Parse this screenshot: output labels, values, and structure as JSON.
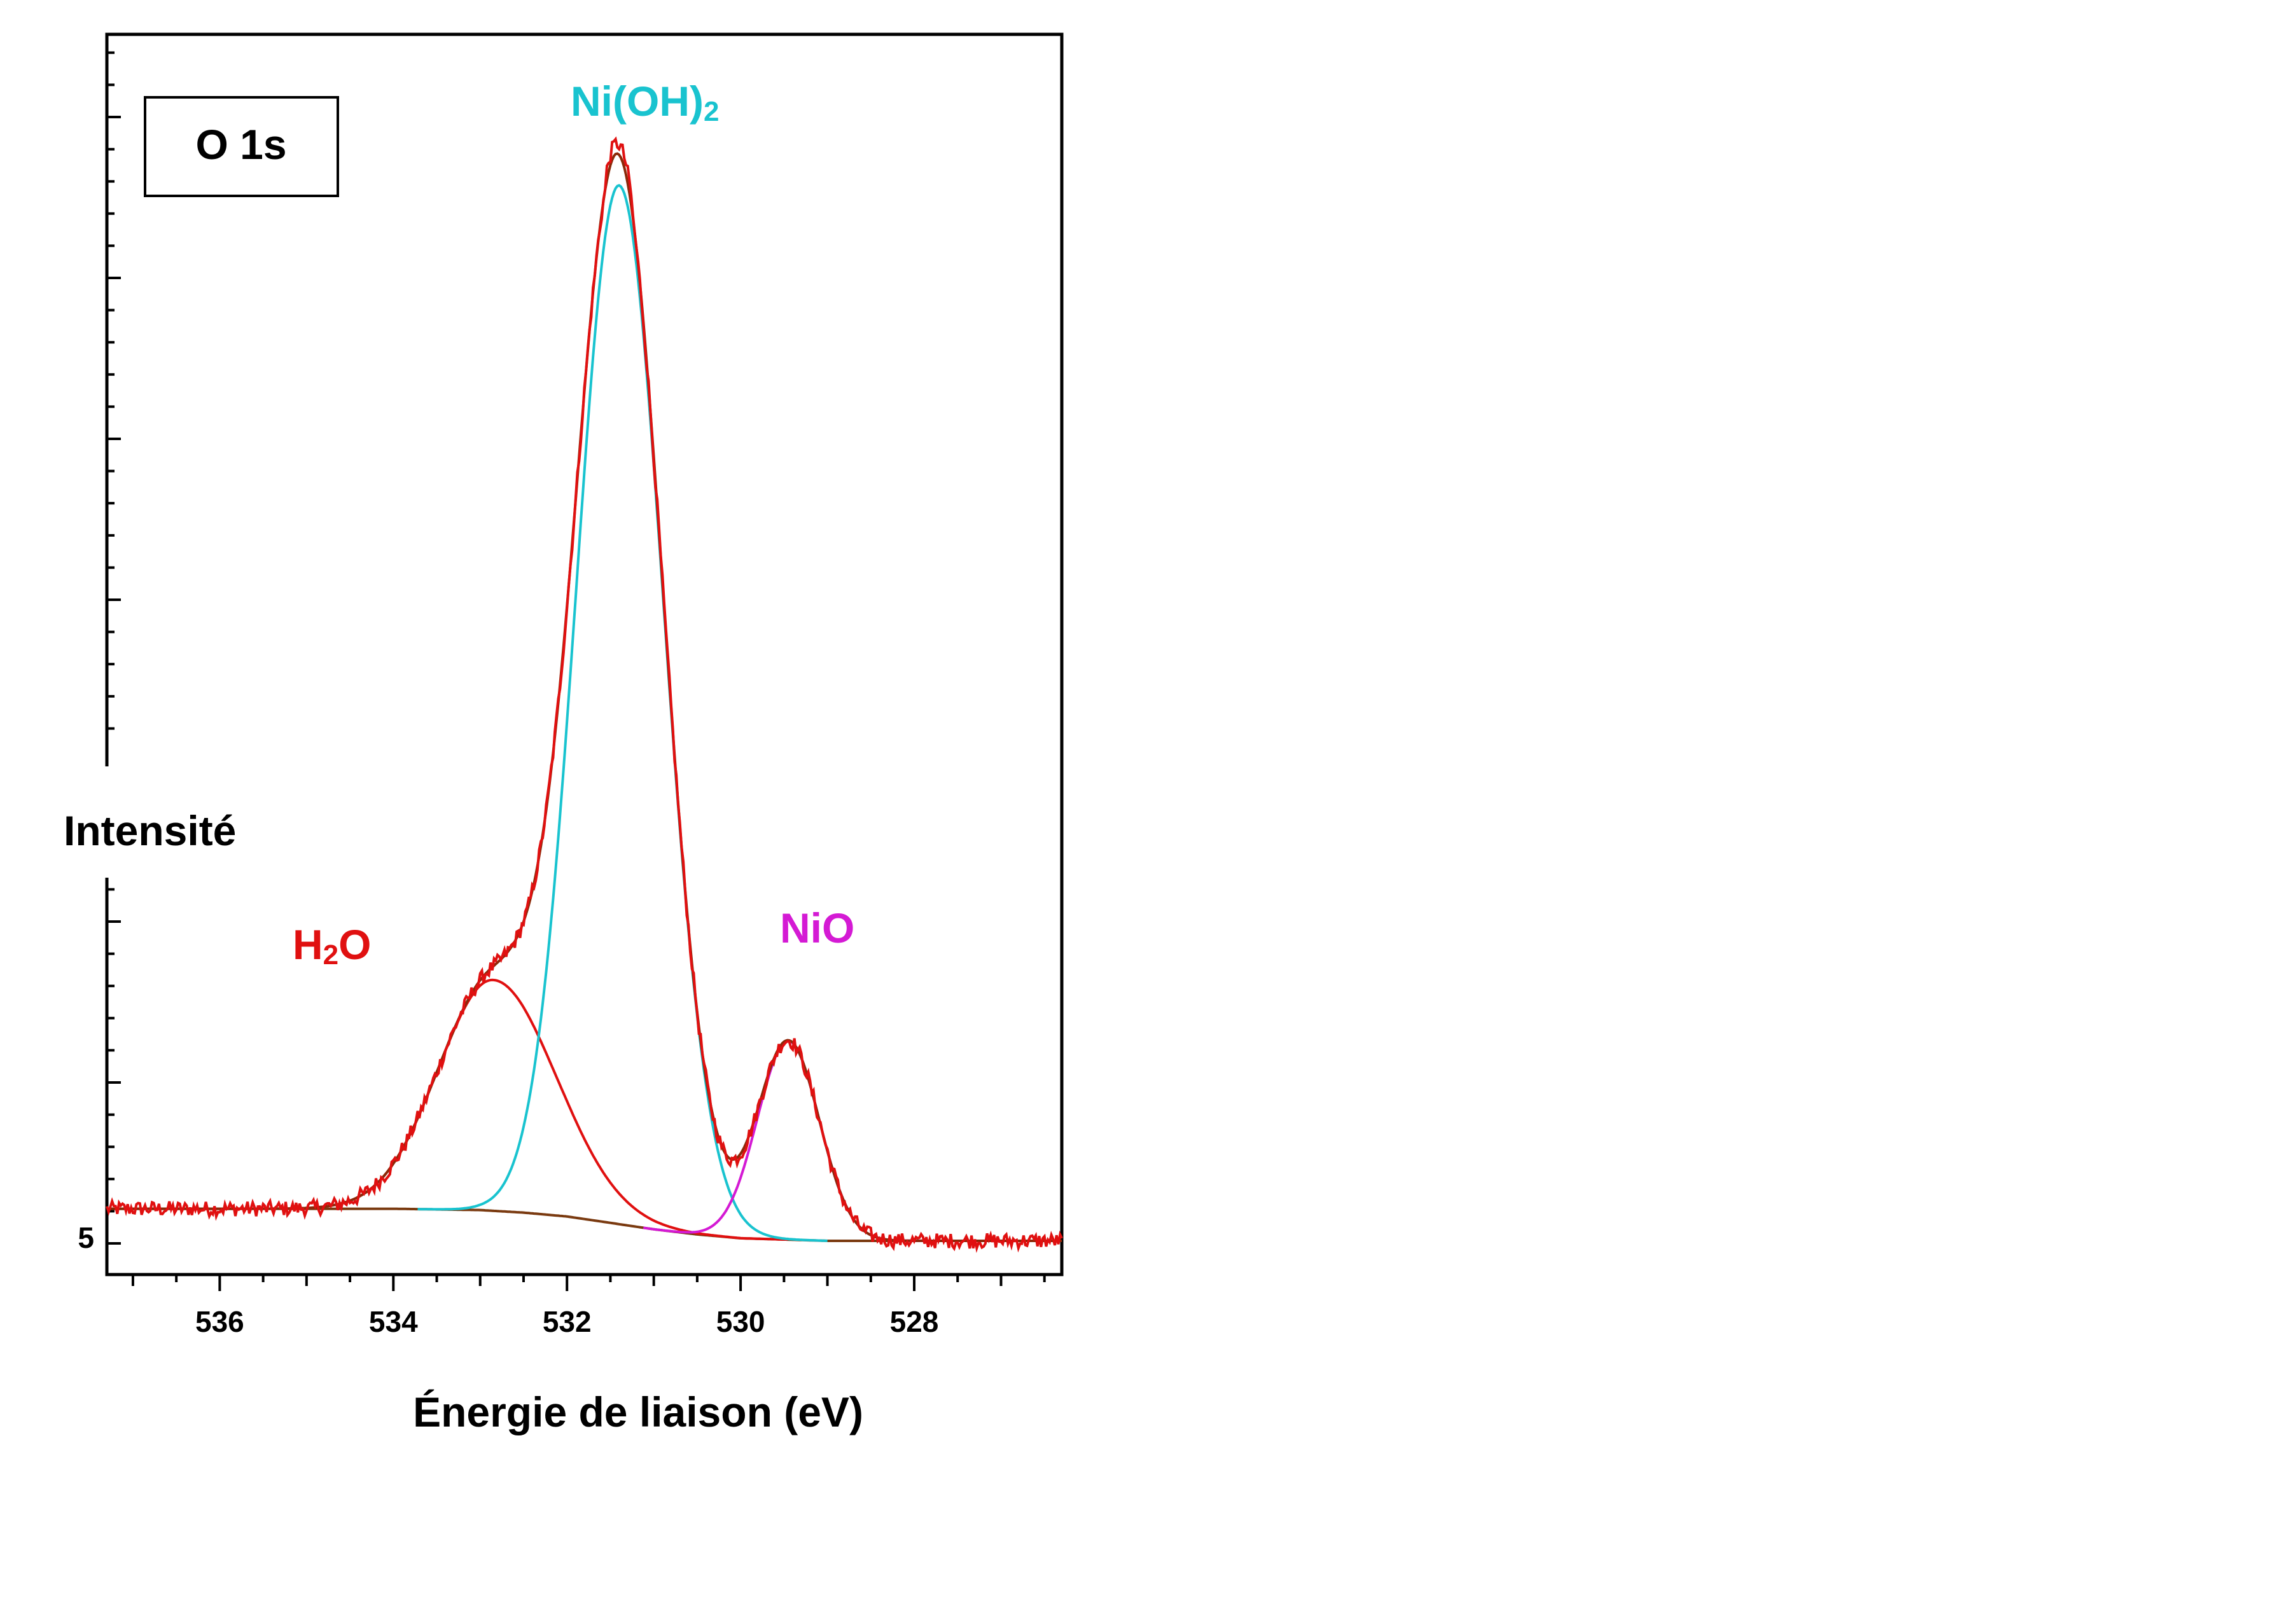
{
  "chart_data": {
    "type": "line",
    "xlabel": "Énergie de liaison (eV)",
    "ylabel": "Intensité",
    "region_label": "O 1s",
    "x_reversed": true,
    "xlim": [
      537.3,
      526.3
    ],
    "ylim": [
      0,
      1.0
    ],
    "x_ticks": [
      536,
      534,
      532,
      530,
      528
    ],
    "x_tick_labels": [
      "536",
      "534",
      "532",
      "530",
      "528"
    ],
    "y_tick_label": "5",
    "y_tick_label_value": 0.03,
    "grid": false,
    "background": {
      "name": "background",
      "color": "#7a3a10",
      "x": [
        537.0,
        536.0,
        535.0,
        534.0,
        533.0,
        532.5,
        532.0,
        531.5,
        531.0,
        530.5,
        530.0,
        529.5,
        529.0,
        528.5,
        528.0,
        527.5,
        526.8
      ],
      "y": [
        0.027,
        0.027,
        0.027,
        0.027,
        0.026,
        0.024,
        0.021,
        0.016,
        0.011,
        0.007,
        0.004,
        0.003,
        0.002,
        0.002,
        0.002,
        0.002,
        0.002
      ]
    },
    "components": [
      {
        "name": "H2O",
        "label_main": "H",
        "label_sub": "2",
        "label_tail": "O",
        "color": "#e01010",
        "center": 532.85,
        "height": 0.18,
        "width_left": 0.75,
        "width_right": 0.85
      },
      {
        "name": "Ni(OH)2",
        "label_main": "Ni(OH)",
        "label_sub": "2",
        "label_tail": "",
        "color": "#19c3cf",
        "center": 531.4,
        "height": 0.81,
        "width_left": 0.58,
        "width_right": 0.6
      },
      {
        "name": "NiO",
        "label_main": "NiO",
        "label_sub": "",
        "label_tail": "",
        "color": "#d41ad4",
        "center": 529.45,
        "height": 0.155,
        "width_left": 0.42,
        "width_right": 0.42
      }
    ],
    "envelope": {
      "name": "envelope",
      "color": "#8b2a0a"
    },
    "experimental": {
      "name": "experimental",
      "color": "#e01010"
    },
    "x_range_points": [
      537.3,
      526.3
    ]
  }
}
